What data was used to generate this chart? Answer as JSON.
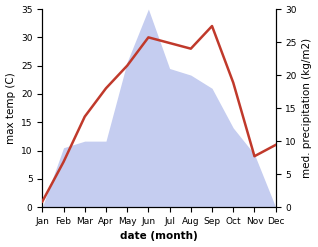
{
  "months": [
    "Jan",
    "Feb",
    "Mar",
    "Apr",
    "May",
    "Jun",
    "Jul",
    "Aug",
    "Sep",
    "Oct",
    "Nov",
    "Dec"
  ],
  "temp": [
    1,
    8,
    16,
    21,
    25,
    30,
    29,
    28,
    32,
    22,
    9,
    11
  ],
  "precip": [
    0,
    9,
    10,
    10,
    22,
    30,
    21,
    20,
    18,
    12,
    8,
    0
  ],
  "temp_color": "#c0392b",
  "precip_fill_color": "#c5cdf0",
  "temp_ylim": [
    0,
    35
  ],
  "precip_ylim": [
    0,
    30
  ],
  "temp_yticks": [
    0,
    5,
    10,
    15,
    20,
    25,
    30,
    35
  ],
  "precip_yticks": [
    0,
    5,
    10,
    15,
    20,
    25,
    30
  ],
  "ylabel_left": "max temp (C)",
  "ylabel_right": "med. precipitation (kg/m2)",
  "xlabel": "date (month)",
  "label_fontsize": 7.5,
  "tick_fontsize": 6.5
}
